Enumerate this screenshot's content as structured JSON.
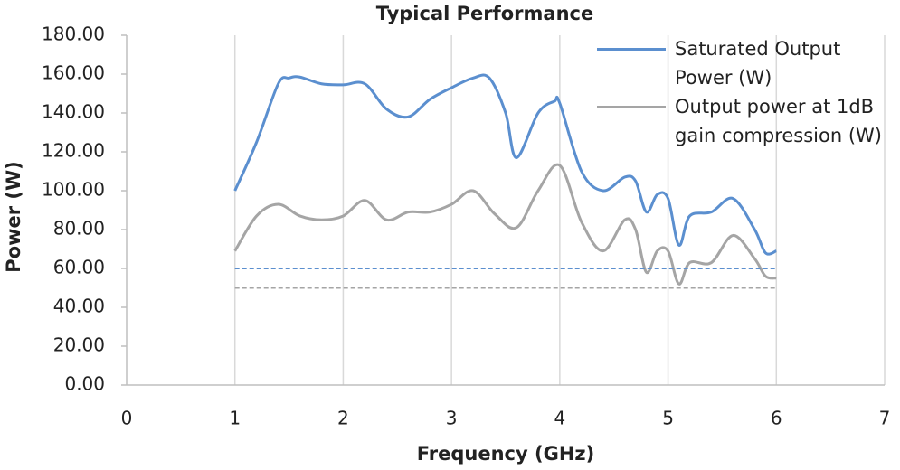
{
  "chart_data": {
    "type": "line",
    "title": "Typical Performance",
    "x_label": "Frequency (GHz)",
    "y_label": "Power (W)",
    "xlim": [
      0,
      7
    ],
    "xticks": [
      0,
      1,
      2,
      3,
      4,
      5,
      6,
      7
    ],
    "ylim": [
      0,
      180
    ],
    "yticks": [
      {
        "value": 0,
        "label": "0.00"
      },
      {
        "value": 20,
        "label": "20.00"
      },
      {
        "value": 40,
        "label": "40.00"
      },
      {
        "value": 60,
        "label": "60.00"
      },
      {
        "value": 80,
        "label": "80.00"
      },
      {
        "value": 100,
        "label": "100.00"
      },
      {
        "value": 120,
        "label": "120.00"
      },
      {
        "value": 140,
        "label": "140.00"
      },
      {
        "value": 160,
        "label": "160.00"
      },
      {
        "value": 180,
        "label": "180.00"
      }
    ],
    "grid": "x",
    "legend": "top-right",
    "smooth": true,
    "series": [
      {
        "name": "Saturated Output Power (W)",
        "color": "#5b8fcf",
        "x": [
          1,
          1.2,
          1.4,
          1.5,
          1.6,
          1.8,
          2.0,
          2.2,
          2.4,
          2.6,
          2.8,
          3.0,
          3.2,
          3.35,
          3.5,
          3.6,
          3.8,
          3.95,
          4.0,
          4.2,
          4.4,
          4.6,
          4.7,
          4.8,
          4.9,
          5.0,
          5.1,
          5.2,
          5.4,
          5.6,
          5.8,
          5.9,
          6.0
        ],
        "values": [
          100,
          125,
          155,
          158,
          158.5,
          155,
          154.5,
          155,
          142,
          138,
          147,
          153,
          158,
          158,
          140,
          117,
          140,
          146,
          145,
          110,
          100,
          107,
          105,
          89,
          98,
          96,
          72,
          87,
          89,
          96,
          80,
          68,
          69
        ]
      },
      {
        "name": "Output power at 1dB gain compression (W)",
        "color": "#a5a5a5",
        "x": [
          1,
          1.2,
          1.4,
          1.6,
          1.8,
          2.0,
          2.2,
          2.4,
          2.6,
          2.8,
          3.0,
          3.2,
          3.4,
          3.6,
          3.8,
          4.0,
          4.2,
          4.4,
          4.6,
          4.7,
          4.8,
          4.9,
          5.0,
          5.1,
          5.2,
          5.4,
          5.6,
          5.8,
          5.9,
          6.0
        ],
        "values": [
          69,
          87,
          93,
          87,
          85,
          87,
          95,
          85,
          89,
          89,
          93,
          100,
          88,
          81,
          100,
          113,
          84,
          69,
          85,
          80,
          58,
          69,
          69,
          52,
          63,
          63,
          77,
          65,
          56,
          55
        ]
      },
      {
        "color": "#5b8fcf",
        "dash": true,
        "x": [
          1,
          6
        ],
        "values": [
          60,
          60
        ]
      },
      {
        "color": "#a5a5a5",
        "dash": true,
        "x": [
          1,
          6
        ],
        "values": [
          50,
          50
        ]
      }
    ]
  }
}
